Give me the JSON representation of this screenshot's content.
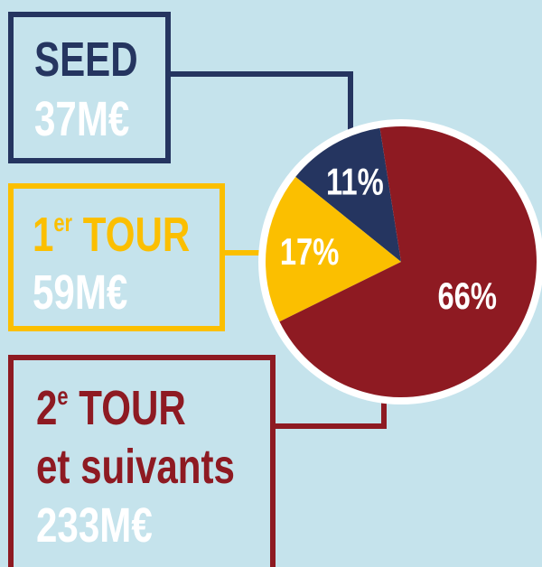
{
  "chart_data": {
    "type": "pie",
    "categories": [
      {
        "text": "SEED"
      },
      {
        "text": "1",
        "sup": "er",
        "rest": " TOUR"
      },
      {
        "text": "2",
        "sup": "e",
        "rest": " TOUR",
        "line2": "et suivants"
      }
    ],
    "amounts": [
      "37M€",
      "59M€",
      "233M€"
    ],
    "values": [
      11,
      17,
      66
    ],
    "value_labels": [
      "11%",
      "17%",
      "66%"
    ],
    "colors": [
      "#253560",
      "#fbbf00",
      "#8e1a22"
    ]
  }
}
